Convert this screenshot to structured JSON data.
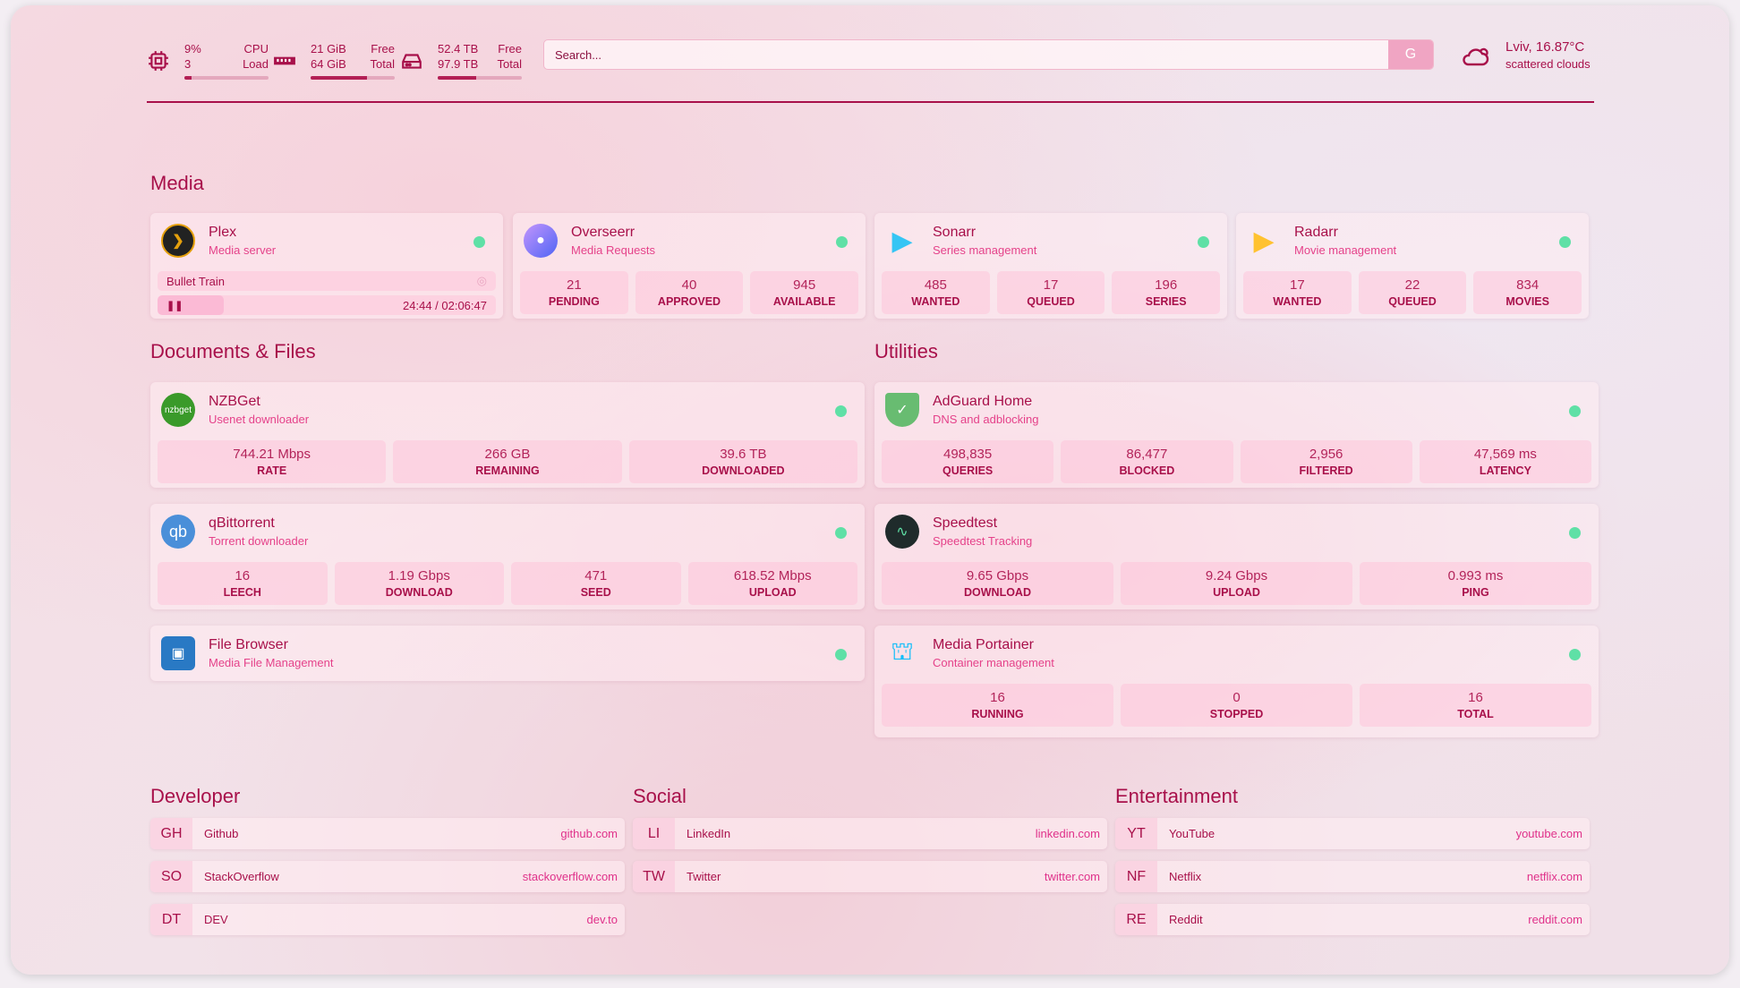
{
  "system": {
    "cpu": {
      "value": "9%",
      "cores": "3",
      "label1": "CPU",
      "label2": "Load",
      "percent": 9
    },
    "ram": {
      "free": "21 GiB",
      "total": "64 GiB",
      "label1": "Free",
      "label2": "Total",
      "percent": 67
    },
    "disk": {
      "free": "52.4 TB",
      "total": "97.9 TB",
      "label1": "Free",
      "label2": "Total",
      "percent": 46
    }
  },
  "search": {
    "placeholder": "Search...",
    "button": "G"
  },
  "weather": {
    "location_temp": "Lviv, 16.87°C",
    "desc": "scattered clouds"
  },
  "sections": {
    "media": "Media",
    "docs": "Documents & Files",
    "utilities": "Utilities",
    "developer": "Developer",
    "social": "Social",
    "entertainment": "Entertainment"
  },
  "plex": {
    "title": "Plex",
    "subtitle": "Media server",
    "now_playing": "Bullet Train",
    "time": "24:44 / 02:06:47",
    "progress": 0.195
  },
  "cards": [
    {
      "title": "Overseerr",
      "subtitle": "Media Requests",
      "icon": "overseerr-icon",
      "stats": [
        {
          "v": "21",
          "l": "PENDING"
        },
        {
          "v": "40",
          "l": "APPROVED"
        },
        {
          "v": "945",
          "l": "AVAILABLE"
        }
      ]
    },
    {
      "title": "Sonarr",
      "subtitle": "Series management",
      "icon": "sonarr-icon",
      "stats": [
        {
          "v": "485",
          "l": "WANTED"
        },
        {
          "v": "17",
          "l": "QUEUED"
        },
        {
          "v": "196",
          "l": "SERIES"
        }
      ]
    },
    {
      "title": "Radarr",
      "subtitle": "Movie management",
      "icon": "radarr-icon",
      "stats": [
        {
          "v": "17",
          "l": "WANTED"
        },
        {
          "v": "22",
          "l": "QUEUED"
        },
        {
          "v": "834",
          "l": "MOVIES"
        }
      ]
    },
    {
      "title": "NZBGet",
      "subtitle": "Usenet downloader",
      "icon": "nzbget-icon",
      "stats": [
        {
          "v": "744.21 Mbps",
          "l": "RATE"
        },
        {
          "v": "266 GB",
          "l": "REMAINING"
        },
        {
          "v": "39.6 TB",
          "l": "DOWNLOADED"
        }
      ]
    },
    {
      "title": "qBittorrent",
      "subtitle": "Torrent downloader",
      "icon": "qbittorrent-icon",
      "stats": [
        {
          "v": "16",
          "l": "LEECH"
        },
        {
          "v": "1.19 Gbps",
          "l": "DOWNLOAD"
        },
        {
          "v": "471",
          "l": "SEED"
        },
        {
          "v": "618.52 Mbps",
          "l": "UPLOAD"
        }
      ]
    },
    {
      "title": "File Browser",
      "subtitle": "Media File Management",
      "icon": "filebrowser-icon",
      "stats": []
    },
    {
      "title": "AdGuard Home",
      "subtitle": "DNS and adblocking",
      "icon": "adguard-icon",
      "stats": [
        {
          "v": "498,835",
          "l": "QUERIES"
        },
        {
          "v": "86,477",
          "l": "BLOCKED"
        },
        {
          "v": "2,956",
          "l": "FILTERED"
        },
        {
          "v": "47,569 ms",
          "l": "LATENCY"
        }
      ]
    },
    {
      "title": "Speedtest",
      "subtitle": "Speedtest Tracking",
      "icon": "speedtest-icon",
      "stats": [
        {
          "v": "9.65 Gbps",
          "l": "DOWNLOAD"
        },
        {
          "v": "9.24 Gbps",
          "l": "UPLOAD"
        },
        {
          "v": "0.993 ms",
          "l": "PING"
        }
      ]
    },
    {
      "title": "Media Portainer",
      "subtitle": "Container management",
      "icon": "portainer-icon",
      "stats": [
        {
          "v": "16",
          "l": "RUNNING"
        },
        {
          "v": "0",
          "l": "STOPPED"
        },
        {
          "v": "16",
          "l": "TOTAL"
        }
      ]
    }
  ],
  "bookmarks": [
    [
      {
        "ab": "GH",
        "name": "Github",
        "url": "github.com"
      },
      {
        "ab": "SO",
        "name": "StackOverflow",
        "url": "stackoverflow.com"
      },
      {
        "ab": "DT",
        "name": "DEV",
        "url": "dev.to"
      }
    ],
    [
      {
        "ab": "LI",
        "name": "LinkedIn",
        "url": "linkedin.com"
      },
      {
        "ab": "TW",
        "name": "Twitter",
        "url": "twitter.com"
      }
    ],
    [
      {
        "ab": "YT",
        "name": "YouTube",
        "url": "youtube.com"
      },
      {
        "ab": "NF",
        "name": "Netflix",
        "url": "netflix.com"
      },
      {
        "ab": "RE",
        "name": "Reddit",
        "url": "reddit.com"
      }
    ]
  ],
  "colors": {
    "accent": "#a8104a",
    "sub": "#e5428a",
    "status_ok": "#5fe0a6"
  }
}
